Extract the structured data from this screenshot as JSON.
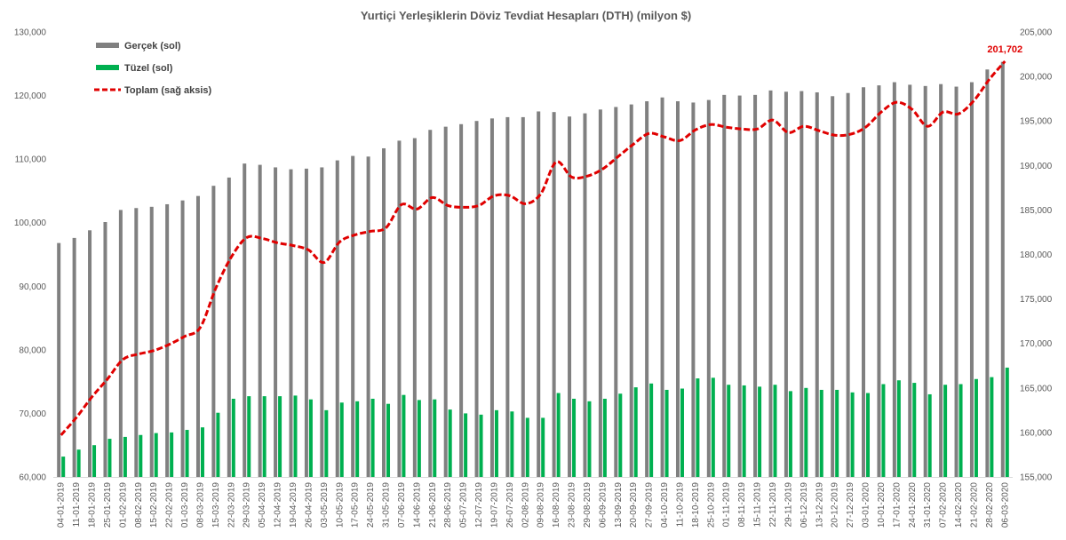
{
  "chart_data": {
    "type": "bar",
    "title": "Yurtiçi Yerleşiklerin Döviz Tevdiat Hesapları (DTH) (milyon $)",
    "categories": [
      "04-01-2019",
      "11-01-2019",
      "18-01-2019",
      "25-01-2019",
      "01-02-2019",
      "08-02-2019",
      "15-02-2019",
      "22-02-2019",
      "01-03-2019",
      "08-03-2019",
      "15-03-2019",
      "22-03-2019",
      "29-03-2019",
      "05-04-2019",
      "12-04-2019",
      "19-04-2019",
      "26-04-2019",
      "03-05-2019",
      "10-05-2019",
      "17-05-2019",
      "24-05-2019",
      "31-05-2019",
      "07-06-2019",
      "14-06-2019",
      "21-06-2019",
      "28-06-2019",
      "05-07-2019",
      "12-07-2019",
      "19-07-2019",
      "26-07-2019",
      "02-08-2019",
      "09-08-2019",
      "16-08-2019",
      "23-08-2019",
      "29-08-2019",
      "06-09-2019",
      "13-09-2019",
      "20-09-2019",
      "27-09-2019",
      "04-10-2019",
      "11-10-2019",
      "18-10-2019",
      "25-10-2019",
      "01-11-2019",
      "08-11-2019",
      "15-11-2019",
      "22-11-2019",
      "29-11-2019",
      "06-12-2019",
      "13-12-2019",
      "20-12-2019",
      "27-12-2019",
      "03-01-2020",
      "10-01-2020",
      "17-01-2020",
      "24-01-2020",
      "31-01-2020",
      "07-02-2020",
      "14-02-2020",
      "21-02-2020",
      "28-02-2020",
      "06-03-2020"
    ],
    "series": [
      {
        "name": "Gerçek (sol)",
        "type": "bar",
        "axis": "left",
        "color": "#808080",
        "values": [
          96800,
          97600,
          98800,
          100100,
          102000,
          102300,
          102500,
          102900,
          103500,
          104200,
          105800,
          107100,
          109300,
          109100,
          108700,
          108400,
          108500,
          108700,
          109800,
          110500,
          110400,
          111700,
          112900,
          113300,
          114600,
          115100,
          115500,
          116000,
          116400,
          116600,
          116600,
          117500,
          117400,
          116700,
          117200,
          117800,
          118200,
          118600,
          119100,
          119700,
          119100,
          118900,
          119300,
          120100,
          120000,
          120100,
          120800,
          120600,
          120700,
          120500,
          119900,
          120400,
          121300,
          121600,
          122100,
          121700,
          121500,
          121800,
          121400,
          122100,
          124100,
          125300
        ]
      },
      {
        "name": "Tüzel (sol)",
        "type": "bar",
        "axis": "left",
        "color": "#00b050",
        "values": [
          63200,
          64300,
          65000,
          66000,
          66300,
          66600,
          66900,
          67000,
          67400,
          67800,
          70100,
          72300,
          72700,
          72700,
          72700,
          72800,
          72200,
          70500,
          71700,
          71900,
          72300,
          71500,
          72900,
          72100,
          72200,
          70600,
          70000,
          69800,
          70500,
          70300,
          69300,
          69300,
          73200,
          72300,
          71900,
          72300,
          73100,
          74100,
          74700,
          73700,
          73900,
          75500,
          75600,
          74500,
          74400,
          74200,
          74500,
          73500,
          74000,
          73700,
          73700,
          73300,
          73200,
          74600,
          75200,
          74800,
          73000,
          74500,
          74600,
          75400,
          75700,
          77200
        ]
      },
      {
        "name": "Toplam (sağ aksis)",
        "type": "line",
        "axis": "right",
        "color": "#e00000",
        "values": [
          159700,
          161700,
          164000,
          166000,
          168200,
          168800,
          169200,
          169900,
          170800,
          171800,
          176200,
          179700,
          181900,
          181800,
          181300,
          181000,
          180500,
          179100,
          181400,
          182200,
          182600,
          183000,
          185600,
          185100,
          186400,
          185500,
          185300,
          185500,
          186600,
          186600,
          185700,
          186800,
          190400,
          188700,
          188800,
          189600,
          191000,
          192400,
          193600,
          193200,
          192800,
          194000,
          194600,
          194300,
          194100,
          194100,
          195100,
          193700,
          194400,
          193900,
          193400,
          193500,
          194300,
          196000,
          197100,
          196300,
          194400,
          196000,
          195800,
          197300,
          199700,
          201702
        ]
      }
    ],
    "y_left": {
      "min": 60000,
      "max": 130000,
      "step": 10000,
      "tick_labels": [
        "60,000",
        "70,000",
        "80,000",
        "90,000",
        "100,000",
        "110,000",
        "120,000",
        "130,000"
      ]
    },
    "y_right": {
      "min": 155000,
      "max": 205000,
      "step": 5000,
      "tick_labels": [
        "155,000",
        "160,000",
        "165,000",
        "170,000",
        "175,000",
        "180,000",
        "185,000",
        "190,000",
        "195,000",
        "200,000",
        "205,000"
      ]
    },
    "legend_position": "top-left",
    "grid": false,
    "annotation": {
      "label": "201,702",
      "series": "Toplam (sağ aksis)",
      "index": 61,
      "color": "#e00000"
    }
  }
}
